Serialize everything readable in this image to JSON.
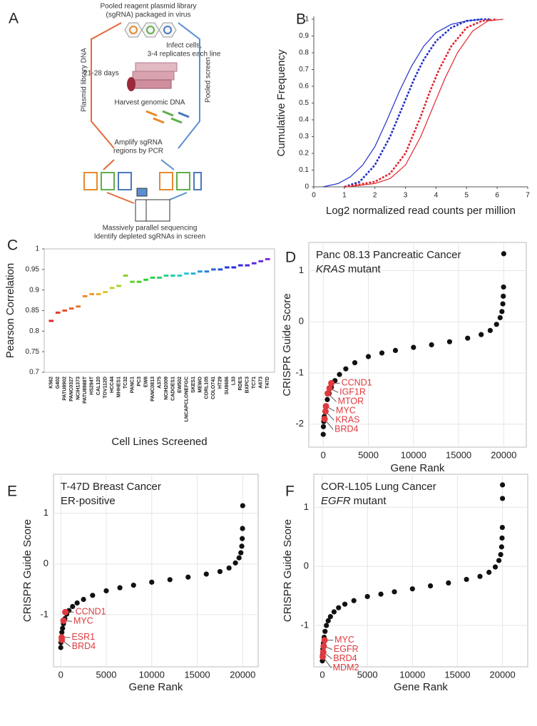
{
  "diagram": {
    "panel": "A",
    "library": [
      "Pooled reagent plasmid library",
      "(sgRNA) packaged in virus"
    ],
    "infect": [
      "Infect cells,",
      "3-4 replicates each line"
    ],
    "days": "21-28 days",
    "harvest": "Harvest genomic DNA",
    "left_branch": "Plasmid library DNA",
    "right_branch": "Pooled screen",
    "amplify": [
      "Amplify sgRNA",
      "regions by PCR"
    ],
    "sequencing": [
      "Massively parallel sequencing",
      "Identify depleted sgRNAs in screen"
    ]
  },
  "chart_data": [
    {
      "type": "line",
      "panel": "B",
      "x_label": "Log2 normalized read counts per million",
      "y_label": "Cumulative Frequency",
      "xlim": [
        0,
        7
      ],
      "ylim": [
        0,
        1
      ],
      "xticks": [
        0,
        1,
        2,
        3,
        4,
        5,
        6,
        7
      ],
      "yticks": [
        0,
        0.1,
        0.2,
        0.3,
        0.4,
        0.5,
        0.6,
        0.7,
        0.8,
        0.9,
        1
      ],
      "grid": false,
      "series": [
        {
          "color": "#1f2fc8",
          "style": "solid",
          "x": [
            0.3,
            0.8,
            1.2,
            1.6,
            2.0,
            2.4,
            2.8,
            3.2,
            3.6,
            4.0,
            4.5,
            5.0,
            5.5
          ],
          "values": [
            0,
            0.02,
            0.06,
            0.13,
            0.24,
            0.4,
            0.57,
            0.72,
            0.84,
            0.92,
            0.97,
            0.99,
            1
          ]
        },
        {
          "color": "#1f2fc8",
          "style": "dotted",
          "x": [
            1.0,
            1.5,
            2.0,
            2.5,
            3.0,
            3.3,
            3.6,
            4.0,
            4.5,
            5.0,
            5.5,
            5.8
          ],
          "values": [
            0,
            0.03,
            0.13,
            0.3,
            0.52,
            0.65,
            0.76,
            0.87,
            0.95,
            0.99,
            1,
            1
          ]
        },
        {
          "color": "#e0262b",
          "style": "dotted",
          "x": [
            1.0,
            2.0,
            2.5,
            3.0,
            3.5,
            3.8,
            4.1,
            4.5,
            5.0,
            5.5,
            6.0
          ],
          "values": [
            0,
            0.03,
            0.08,
            0.2,
            0.42,
            0.57,
            0.7,
            0.84,
            0.95,
            0.99,
            1
          ]
        },
        {
          "color": "#e0262b",
          "style": "solid",
          "x": [
            1.1,
            2.0,
            2.5,
            3.0,
            3.5,
            4.0,
            4.3,
            4.7,
            5.2,
            5.7,
            6.2
          ],
          "values": [
            0,
            0.02,
            0.05,
            0.13,
            0.3,
            0.52,
            0.65,
            0.8,
            0.93,
            0.99,
            1
          ]
        }
      ]
    },
    {
      "type": "strip",
      "panel": "C",
      "x_label": "Cell Lines Screened",
      "y_label": "Pearson Correlation",
      "ylim": [
        0.7,
        1
      ],
      "yticks": [
        0.7,
        0.75,
        0.8,
        0.85,
        0.9,
        0.95,
        1
      ],
      "grid": false,
      "categories": [
        "K562",
        "G402",
        "PATU8902",
        "PANC0327",
        "NCIH1373",
        "PATU8988T",
        "HS294T",
        "CAL120",
        "TOV112D",
        "HCC44",
        "MHHES1",
        "TC32",
        "PANC1",
        "PC3",
        "EW8",
        "PANC0813",
        "A375",
        "NCIH2009",
        "CADOES1",
        "EW502",
        "LNCAPCLONEFGC",
        "SKES1",
        "MEWO",
        "CORL105",
        "COLO741",
        "HT29",
        "SU8686",
        "L33",
        "RDES",
        "BXPC3",
        "TC71",
        "A673",
        "T47D"
      ],
      "values": [
        0.825,
        0.845,
        0.85,
        0.855,
        0.86,
        0.885,
        0.89,
        0.89,
        0.895,
        0.905,
        0.91,
        0.935,
        0.92,
        0.92,
        0.925,
        0.93,
        0.93,
        0.935,
        0.935,
        0.935,
        0.94,
        0.94,
        0.945,
        0.945,
        0.95,
        0.95,
        0.955,
        0.955,
        0.96,
        0.96,
        0.965,
        0.97,
        0.975
      ],
      "colors": [
        "#e8262a",
        "#e83a2a",
        "#e84e2a",
        "#e8622a",
        "#e8762a",
        "#e88a2a",
        "#e89e2a",
        "#e8b22a",
        "#e0c42a",
        "#c8d02a",
        "#a8d02a",
        "#88d02a",
        "#68d02a",
        "#48d02a",
        "#2ad02a",
        "#2ad04a",
        "#2ad06a",
        "#2ad08a",
        "#2ad0aa",
        "#2ad0ca",
        "#2ac8d8",
        "#2ab0d8",
        "#2a98d8",
        "#2a80d8",
        "#2a68d8",
        "#2a50d8",
        "#2a38d8",
        "#2a2ad8",
        "#3a2ad8",
        "#4a2ad8",
        "#5a2ad8",
        "#6a2ad8",
        "#7a2ad8"
      ]
    },
    {
      "type": "scatter",
      "panel": "D",
      "title": "Panc 08.13 Pancreatic Cancer",
      "subtitle": [
        "KRAS",
        "mutant"
      ],
      "subtitle_italic": [
        true,
        false
      ],
      "x_label": "Gene Rank",
      "y_label": "CRISPR Guide Score",
      "xlim": [
        -1600,
        22500
      ],
      "ylim": [
        -2.45,
        1.55
      ],
      "xticks": [
        0,
        5000,
        10000,
        15000,
        20000
      ],
      "yticks": [
        -2,
        -1,
        0,
        1
      ],
      "grid": true,
      "color": "#111111",
      "x": [
        0,
        20,
        60,
        120,
        200,
        300,
        450,
        650,
        900,
        1300,
        1800,
        2500,
        3500,
        5000,
        6500,
        8000,
        10000,
        12000,
        14000,
        16000,
        17500,
        18500,
        19200,
        19600,
        19800,
        19900,
        19950,
        19980,
        20000
      ],
      "values": [
        -2.2,
        -2.05,
        -1.95,
        -1.85,
        -1.75,
        -1.65,
        -1.52,
        -1.4,
        -1.28,
        -1.15,
        -1.03,
        -0.92,
        -0.8,
        -0.68,
        -0.61,
        -0.56,
        -0.5,
        -0.45,
        -0.39,
        -0.32,
        -0.25,
        -0.17,
        -0.05,
        0.08,
        0.2,
        0.35,
        0.5,
        0.68,
        1.33
      ],
      "highlights": {
        "color": "#e0393e",
        "labels": [
          "CCND1",
          "IGF1R",
          "MTOR",
          "MYC",
          "KRAS",
          "BRD4"
        ],
        "x": [
          900,
          700,
          500,
          300,
          250,
          150
        ],
        "values": [
          -1.2,
          -1.3,
          -1.4,
          -1.65,
          -1.75,
          -1.9
        ]
      }
    },
    {
      "type": "scatter",
      "panel": "E",
      "title": "T-47D Breast Cancer",
      "subtitle": [
        "ER-positive"
      ],
      "subtitle_italic": [
        false
      ],
      "x_label": "Gene Rank",
      "y_label": "CRISPR Guide Score",
      "xlim": [
        -800,
        21700
      ],
      "ylim": [
        -2.03,
        1.77
      ],
      "xticks": [
        0,
        5000,
        10000,
        15000,
        20000
      ],
      "yticks": [
        -1,
        0,
        1
      ],
      "grid": true,
      "color": "#111111",
      "x": [
        0,
        20,
        60,
        120,
        200,
        300,
        450,
        650,
        900,
        1300,
        1800,
        2500,
        3500,
        5000,
        6500,
        8000,
        10000,
        12000,
        14000,
        16000,
        17500,
        18500,
        19200,
        19600,
        19800,
        19900,
        19950,
        19980,
        20000
      ],
      "values": [
        -1.65,
        -1.55,
        -1.45,
        -1.35,
        -1.27,
        -1.18,
        -1.08,
        -0.99,
        -0.92,
        -0.84,
        -0.77,
        -0.7,
        -0.62,
        -0.53,
        -0.47,
        -0.42,
        -0.36,
        -0.31,
        -0.26,
        -0.2,
        -0.15,
        -0.08,
        0.02,
        0.12,
        0.22,
        0.35,
        0.5,
        0.7,
        1.15
      ],
      "highlights": {
        "color": "#e0393e",
        "labels": [
          "CCND1",
          "MYC",
          "ESR1",
          "BRD4"
        ],
        "x": [
          500,
          300,
          100,
          120
        ],
        "values": [
          -0.95,
          -1.12,
          -1.45,
          -1.5
        ]
      }
    },
    {
      "type": "scatter",
      "panel": "F",
      "title": "COR-L105 Lung Cancer",
      "subtitle": [
        "EGFR",
        "mutant"
      ],
      "subtitle_italic": [
        true,
        false
      ],
      "x_label": "Gene Rank",
      "y_label": "CRISPR Guide Score",
      "xlim": [
        -950,
        22800
      ],
      "ylim": [
        -1.7,
        1.56
      ],
      "xticks": [
        0,
        5000,
        10000,
        15000,
        20000
      ],
      "yticks": [
        -1,
        0,
        1
      ],
      "grid": true,
      "color": "#111111",
      "x": [
        0,
        20,
        60,
        120,
        200,
        300,
        450,
        650,
        900,
        1300,
        1800,
        2500,
        3500,
        5000,
        6500,
        8000,
        10000,
        12000,
        14000,
        16000,
        17500,
        18500,
        19200,
        19600,
        19800,
        19900,
        19950,
        19980,
        20000,
        20000
      ],
      "values": [
        -1.6,
        -1.5,
        -1.4,
        -1.3,
        -1.2,
        -1.1,
        -1.0,
        -0.92,
        -0.85,
        -0.77,
        -0.7,
        -0.64,
        -0.58,
        -0.51,
        -0.47,
        -0.43,
        -0.38,
        -0.33,
        -0.28,
        -0.22,
        -0.17,
        -0.1,
        -0.01,
        0.1,
        0.2,
        0.33,
        0.48,
        0.66,
        1.15,
        1.38
      ],
      "highlights": {
        "color": "#e0393e",
        "labels": [
          "MYC",
          "EGFR",
          "BRD4",
          "MDM2"
        ],
        "x": [
          250,
          150,
          100,
          50
        ],
        "values": [
          -1.25,
          -1.35,
          -1.45,
          -1.53
        ]
      }
    }
  ]
}
